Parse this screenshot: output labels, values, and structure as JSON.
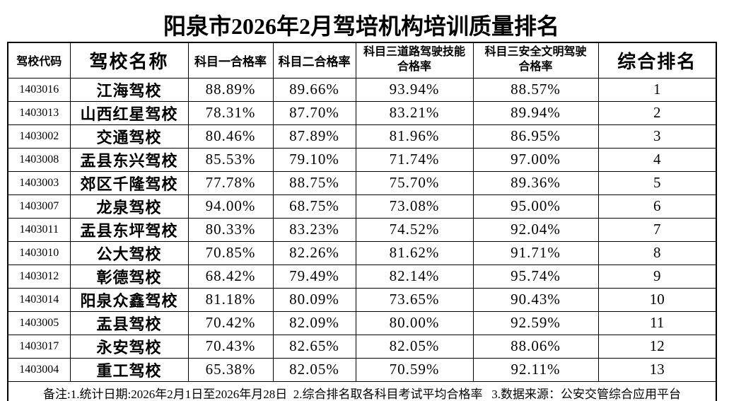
{
  "title": "阳泉市2026年2月驾培机构培训质量排名",
  "colors": {
    "text": "#000000",
    "background": "#ffffff",
    "border": "#000000"
  },
  "table": {
    "columns": [
      {
        "label": "驾校代码"
      },
      {
        "label": "驾校名称"
      },
      {
        "label": "科目一合格率"
      },
      {
        "label": "科目二合格率"
      },
      {
        "label": "科目三道路驾驶技能合格率",
        "lines": [
          "科目三道路驾驶技能",
          "合格率"
        ]
      },
      {
        "label": "科目三安全文明驾驶合格率",
        "lines": [
          "科目三安全文明驾驶",
          "合格率"
        ]
      },
      {
        "label": "综合排名"
      }
    ],
    "rows": [
      {
        "code": "1403016",
        "name": "江海驾校",
        "k1": "88.89%",
        "k2": "89.66%",
        "k3_road": "93.94%",
        "k3_safe": "88.57%",
        "rank": "1"
      },
      {
        "code": "1403013",
        "name": "山西红星驾校",
        "k1": "78.31%",
        "k2": "87.70%",
        "k3_road": "83.21%",
        "k3_safe": "89.94%",
        "rank": "2"
      },
      {
        "code": "1403002",
        "name": "交通驾校",
        "k1": "80.46%",
        "k2": "87.89%",
        "k3_road": "81.96%",
        "k3_safe": "86.95%",
        "rank": "3"
      },
      {
        "code": "1403008",
        "name": "盂县东兴驾校",
        "k1": "85.53%",
        "k2": "79.10%",
        "k3_road": "71.74%",
        "k3_safe": "97.00%",
        "rank": "4"
      },
      {
        "code": "1403003",
        "name": "郊区千隆驾校",
        "k1": "77.78%",
        "k2": "88.75%",
        "k3_road": "75.70%",
        "k3_safe": "89.36%",
        "rank": "5"
      },
      {
        "code": "1403007",
        "name": "龙泉驾校",
        "k1": "94.00%",
        "k2": "68.75%",
        "k3_road": "73.08%",
        "k3_safe": "95.00%",
        "rank": "6"
      },
      {
        "code": "1403011",
        "name": "盂县东坪驾校",
        "k1": "80.33%",
        "k2": "83.23%",
        "k3_road": "74.52%",
        "k3_safe": "92.04%",
        "rank": "7"
      },
      {
        "code": "1403010",
        "name": "公大驾校",
        "k1": "70.85%",
        "k2": "82.26%",
        "k3_road": "81.62%",
        "k3_safe": "91.71%",
        "rank": "8"
      },
      {
        "code": "1403012",
        "name": "彰德驾校",
        "k1": "68.42%",
        "k2": "79.49%",
        "k3_road": "82.14%",
        "k3_safe": "95.74%",
        "rank": "9"
      },
      {
        "code": "1403014",
        "name": "阳泉众鑫驾校",
        "k1": "81.18%",
        "k2": "80.09%",
        "k3_road": "73.65%",
        "k3_safe": "90.43%",
        "rank": "10"
      },
      {
        "code": "1403005",
        "name": "盂县驾校",
        "k1": "70.42%",
        "k2": "82.09%",
        "k3_road": "80.00%",
        "k3_safe": "92.59%",
        "rank": "11"
      },
      {
        "code": "1403017",
        "name": "永安驾校",
        "k1": "70.43%",
        "k2": "82.65%",
        "k3_road": "82.05%",
        "k3_safe": "88.06%",
        "rank": "12"
      },
      {
        "code": "1403004",
        "name": "重工驾校",
        "k1": "65.38%",
        "k2": "82.05%",
        "k3_road": "70.59%",
        "k3_safe": "92.11%",
        "rank": "13"
      }
    ]
  },
  "footnote": "备注:1.统计日期:2026年2月1日至2026年月28日  2.综合排名取各科目考试平均合格率   3.数据来源：公安交管综合应用平台"
}
